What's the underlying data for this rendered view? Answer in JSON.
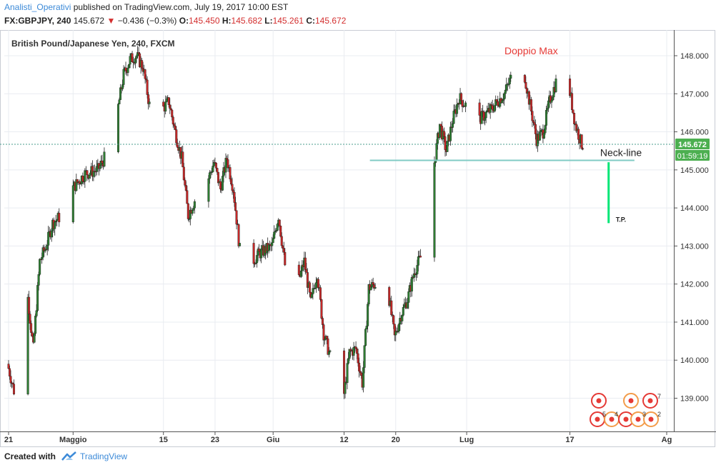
{
  "header": {
    "author": "Analisti_Operativi",
    "published": "published on TradingView.com, July 19, 2017 10:00 EST",
    "symbol": "FX:GBPJPY, 240",
    "last": "145.672",
    "change_arrow": "▼",
    "change": "−0.436 (−0.3%)",
    "ohlc": [
      {
        "label": "O:",
        "value": "145.450"
      },
      {
        "label": "H:",
        "value": "145.682"
      },
      {
        "label": "L:",
        "value": "145.261"
      },
      {
        "label": "C:",
        "value": "145.672"
      }
    ]
  },
  "chart_data": {
    "type": "candlestick",
    "title": "British Pound/Japanese Yen, 240, FXCM",
    "ylim": [
      138.3,
      148.6
    ],
    "y_ticks": [
      "148.000",
      "147.000",
      "146.000",
      "145.000",
      "144.000",
      "143.000",
      "142.000",
      "141.000",
      "140.000",
      "139.000"
    ],
    "x_range": [
      "2017-04-21",
      "2017-08-01"
    ],
    "x_ticks": [
      {
        "date": "2017-04-21",
        "label": "21"
      },
      {
        "date": "2017-05-01",
        "label": "Maggio"
      },
      {
        "date": "2017-05-15",
        "label": "15"
      },
      {
        "date": "2017-05-23",
        "label": "23"
      },
      {
        "date": "2017-06-01",
        "label": "Giu"
      },
      {
        "date": "2017-06-12",
        "label": "12"
      },
      {
        "date": "2017-06-20",
        "label": "20"
      },
      {
        "date": "2017-07-01",
        "label": "Lug"
      },
      {
        "date": "2017-07-17",
        "label": "17"
      },
      {
        "date": "2017-08-01",
        "label": "Ag"
      }
    ],
    "price_path": [
      [
        "2017-04-21",
        139.9
      ],
      [
        "2017-04-22",
        139.2
      ],
      [
        "2017-04-24",
        141.9
      ],
      [
        "2017-04-25",
        140.3
      ],
      [
        "2017-04-26",
        142.6
      ],
      [
        "2017-04-27",
        143.0
      ],
      [
        "2017-04-28",
        143.6
      ],
      [
        "2017-04-30",
        143.9
      ],
      [
        "2017-05-01",
        144.5
      ],
      [
        "2017-05-03",
        144.9
      ],
      [
        "2017-05-05",
        145.0
      ],
      [
        "2017-05-07",
        145.6
      ],
      [
        "2017-05-08",
        146.5
      ],
      [
        "2017-05-09",
        147.5
      ],
      [
        "2017-05-10",
        147.9
      ],
      [
        "2017-05-11",
        148.0
      ],
      [
        "2017-05-12",
        147.7
      ],
      [
        "2017-05-13",
        146.7
      ],
      [
        "2017-05-14",
        146.2
      ],
      [
        "2017-05-15",
        146.6
      ],
      [
        "2017-05-16",
        146.8
      ],
      [
        "2017-05-17",
        146.0
      ],
      [
        "2017-05-18",
        145.3
      ],
      [
        "2017-05-19",
        143.8
      ],
      [
        "2017-05-20",
        144.2
      ],
      [
        "2017-05-22",
        144.7
      ],
      [
        "2017-05-23",
        145.2
      ],
      [
        "2017-05-24",
        144.5
      ],
      [
        "2017-05-25",
        145.3
      ],
      [
        "2017-05-26",
        144.5
      ],
      [
        "2017-05-27",
        142.9
      ],
      [
        "2017-05-28",
        142.4
      ],
      [
        "2017-05-30",
        142.8
      ],
      [
        "2017-06-01",
        143.0
      ],
      [
        "2017-06-02",
        143.8
      ],
      [
        "2017-06-03",
        142.5
      ],
      [
        "2017-06-05",
        142.0
      ],
      [
        "2017-06-06",
        142.6
      ],
      [
        "2017-06-07",
        141.5
      ],
      [
        "2017-06-08",
        142.3
      ],
      [
        "2017-06-09",
        140.7
      ],
      [
        "2017-06-10",
        140.1
      ],
      [
        "2017-06-11",
        139.9
      ],
      [
        "2017-06-12",
        138.9
      ],
      [
        "2017-06-13",
        140.2
      ],
      [
        "2017-06-14",
        140.3
      ],
      [
        "2017-06-15",
        139.4
      ],
      [
        "2017-06-16",
        141.9
      ],
      [
        "2017-06-17",
        142.0
      ],
      [
        "2017-06-18",
        141.5
      ],
      [
        "2017-06-19",
        141.8
      ],
      [
        "2017-06-20",
        140.6
      ],
      [
        "2017-06-21",
        141.2
      ],
      [
        "2017-06-22",
        141.6
      ],
      [
        "2017-06-23",
        142.3
      ],
      [
        "2017-06-24",
        142.7
      ],
      [
        "2017-06-25",
        144.2
      ],
      [
        "2017-06-26",
        145.0
      ],
      [
        "2017-06-27",
        146.2
      ],
      [
        "2017-06-28",
        145.5
      ],
      [
        "2017-06-29",
        146.3
      ],
      [
        "2017-06-30",
        146.9
      ],
      [
        "2017-07-02",
        146.5
      ],
      [
        "2017-07-03",
        146.3
      ],
      [
        "2017-07-05",
        146.6
      ],
      [
        "2017-07-06",
        146.8
      ],
      [
        "2017-07-07",
        147.0
      ],
      [
        "2017-07-08",
        147.4
      ],
      [
        "2017-07-10",
        147.6
      ],
      [
        "2017-07-11",
        146.7
      ],
      [
        "2017-07-12",
        145.8
      ],
      [
        "2017-07-13",
        146.0
      ],
      [
        "2017-07-14",
        146.8
      ],
      [
        "2017-07-15",
        147.3
      ],
      [
        "2017-07-16",
        147.5
      ],
      [
        "2017-07-17",
        147.2
      ],
      [
        "2017-07-18",
        146.2
      ],
      [
        "2017-07-19",
        145.672
      ]
    ],
    "last_price": {
      "value": "145.672",
      "countdown": "01:59:19",
      "color": "#4caf50"
    },
    "neckline": {
      "value": 145.25,
      "from": "2017-06-16",
      "to": "2017-07-27",
      "label": "Neck-line",
      "color": "#80cbc4"
    },
    "target": {
      "from": 145.2,
      "to": 143.6,
      "date": "2017-07-23",
      "label": "T.P.",
      "color": "#00e676"
    },
    "annotation": {
      "text": "Doppio Max",
      "date": "2017-07-11",
      "price": 148.0,
      "color": "#e53935"
    },
    "up_color": "#2e7d32",
    "down_color": "#c62828",
    "event_icons": [
      "5",
      "4",
      "3",
      "2",
      "7"
    ]
  },
  "footer": {
    "created_with": "Created with",
    "brand": "TradingView"
  }
}
